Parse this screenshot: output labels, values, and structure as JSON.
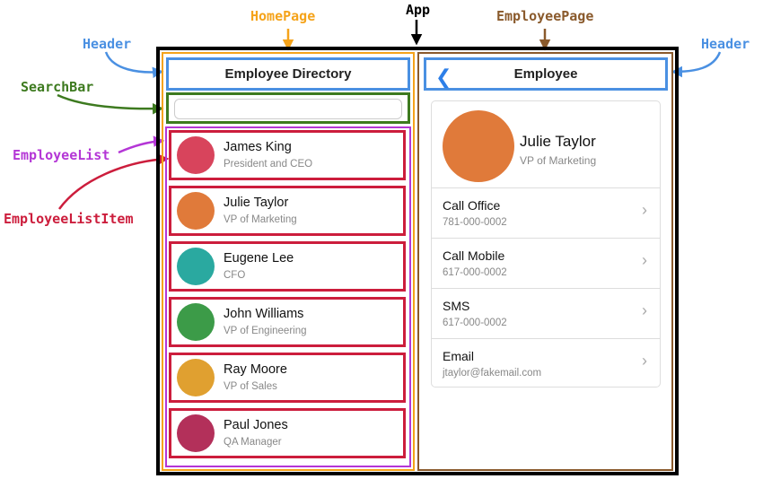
{
  "annotations": {
    "app": "App",
    "homepage": "HomePage",
    "employeepage": "EmployeePage",
    "header_left": "Header",
    "header_right": "Header",
    "searchbar": "SearchBar",
    "employeelist": "EmployeeList",
    "employeelistitem": "EmployeeListItem"
  },
  "colors": {
    "app": "#000000",
    "homepage": "#f5a31a",
    "employeepage": "#8a5a2c",
    "header": "#4a90e2",
    "searchbar": "#3d7a1f",
    "employeelist": "#b436d6",
    "listitem": "#cc1d3c"
  },
  "home": {
    "title": "Employee Directory",
    "employees": [
      {
        "name": "James King",
        "title": "President and CEO",
        "avatar_color": "#d8445c"
      },
      {
        "name": "Julie Taylor",
        "title": "VP of Marketing",
        "avatar_color": "#e07a3a"
      },
      {
        "name": "Eugene Lee",
        "title": "CFO",
        "avatar_color": "#2aa9a0"
      },
      {
        "name": "John Williams",
        "title": "VP of Engineering",
        "avatar_color": "#3c9b48"
      },
      {
        "name": "Ray Moore",
        "title": "VP of Sales",
        "avatar_color": "#e0a030"
      },
      {
        "name": "Paul Jones",
        "title": "QA Manager",
        "avatar_color": "#b3305a"
      }
    ]
  },
  "detail": {
    "title": "Employee",
    "name": "Julie Taylor",
    "job": "VP of Marketing",
    "actions": [
      {
        "label": "Call Office",
        "value": "781-000-0002"
      },
      {
        "label": "Call Mobile",
        "value": "617-000-0002"
      },
      {
        "label": "SMS",
        "value": "617-000-0002"
      },
      {
        "label": "Email",
        "value": "jtaylor@fakemail.com"
      }
    ]
  }
}
